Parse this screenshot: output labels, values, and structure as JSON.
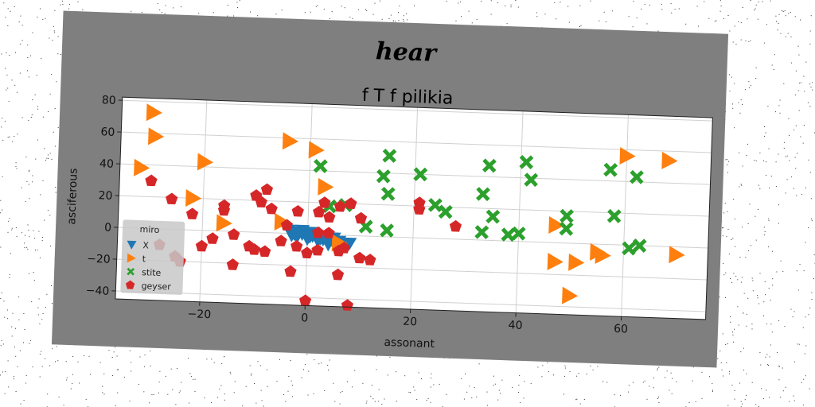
{
  "figure": {
    "suptitle": "hear"
  },
  "chart_data": {
    "type": "scatter",
    "title": "f T f pilikia",
    "xlabel": "assonant",
    "ylabel": "asciferous",
    "xlim": [
      -36,
      76
    ],
    "ylim": [
      -45,
      82
    ],
    "xticks": [
      -20,
      0,
      20,
      40,
      60
    ],
    "yticks": [
      -40,
      -20,
      0,
      20,
      40,
      60,
      80
    ],
    "grid": true,
    "legend": {
      "title": "miro",
      "position": "lower-left"
    },
    "series": [
      {
        "name": "X",
        "marker": "triangle-down",
        "color": "#1f77b4",
        "points": [
          [
            -3.5,
            2
          ],
          [
            -2,
            1
          ],
          [
            -1,
            0
          ],
          [
            0,
            0.5
          ],
          [
            1,
            -1
          ],
          [
            2,
            -2
          ],
          [
            3,
            -3
          ],
          [
            4,
            -4
          ],
          [
            5,
            -5
          ],
          [
            -3,
            -1
          ],
          [
            -2,
            -2
          ],
          [
            0,
            -3
          ],
          [
            2,
            -4
          ],
          [
            4,
            -6
          ],
          [
            6,
            -7
          ],
          [
            7,
            -6
          ],
          [
            -1,
            2
          ],
          [
            1,
            1
          ],
          [
            3,
            -1
          ],
          [
            5,
            -2
          ],
          [
            6,
            -4
          ],
          [
            8,
            -5
          ],
          [
            -2.5,
            0
          ],
          [
            0.5,
            -1.5
          ],
          [
            2.5,
            -2.5
          ]
        ]
      },
      {
        "name": "t",
        "marker": "triangle-right",
        "color": "#ff7f0e",
        "points": [
          [
            -30,
            73
          ],
          [
            -29.5,
            58
          ],
          [
            -32,
            38
          ],
          [
            -20,
            43
          ],
          [
            -22,
            20
          ],
          [
            -16,
            5
          ],
          [
            -4,
            58
          ],
          [
            1,
            53
          ],
          [
            3,
            30
          ],
          [
            -5,
            7
          ],
          [
            6,
            -5
          ],
          [
            47,
            11
          ],
          [
            47,
            -12
          ],
          [
            51,
            -12
          ],
          [
            55,
            -5
          ],
          [
            56,
            -7
          ],
          [
            50,
            -33
          ],
          [
            60,
            56
          ],
          [
            68,
            54
          ],
          [
            70,
            -5
          ]
        ]
      },
      {
        "name": "stite",
        "marker": "x",
        "color": "#2ca02c",
        "points": [
          [
            15,
            51
          ],
          [
            2,
            43
          ],
          [
            14,
            38
          ],
          [
            15,
            27
          ],
          [
            21,
            40
          ],
          [
            34,
            47
          ],
          [
            33,
            29
          ],
          [
            41,
            50
          ],
          [
            42,
            39
          ],
          [
            57,
            47
          ],
          [
            62,
            43
          ],
          [
            4,
            18
          ],
          [
            7,
            19
          ],
          [
            11,
            6
          ],
          [
            15,
            4
          ],
          [
            24,
            21
          ],
          [
            26,
            17
          ],
          [
            33,
            5
          ],
          [
            35,
            15
          ],
          [
            38,
            4
          ],
          [
            40,
            5
          ],
          [
            49,
            17
          ],
          [
            49,
            9
          ],
          [
            58,
            18
          ],
          [
            61,
            -2
          ],
          [
            63,
            0
          ]
        ]
      },
      {
        "name": "geyser",
        "marker": "pentagon",
        "color": "#d62728",
        "points": [
          [
            -30,
            30
          ],
          [
            -26,
            19
          ],
          [
            -22,
            10
          ],
          [
            -16,
            16
          ],
          [
            -16,
            13
          ],
          [
            -10,
            23
          ],
          [
            -9,
            19
          ],
          [
            -8,
            27
          ],
          [
            -7,
            15
          ],
          [
            -2,
            14
          ],
          [
            2,
            14
          ],
          [
            3,
            20
          ],
          [
            4,
            11
          ],
          [
            6,
            18
          ],
          [
            8,
            20
          ],
          [
            10,
            11
          ],
          [
            2,
            1
          ],
          [
            -4,
            5
          ],
          [
            4,
            1
          ],
          [
            -14,
            -2
          ],
          [
            -11,
            -9
          ],
          [
            -10,
            -11
          ],
          [
            -8,
            -12
          ],
          [
            -5,
            -5
          ],
          [
            -2,
            -8
          ],
          [
            0,
            -12
          ],
          [
            2,
            -10
          ],
          [
            6,
            -10
          ],
          [
            7,
            -8
          ],
          [
            10,
            -14
          ],
          [
            12,
            -15
          ],
          [
            -24,
            -20
          ],
          [
            -20,
            -10
          ],
          [
            -25,
            -17
          ],
          [
            -14,
            -21
          ],
          [
            -3,
            -24
          ],
          [
            6,
            -25
          ],
          [
            0,
            -42
          ],
          [
            8,
            -44
          ],
          [
            21,
            22
          ],
          [
            21,
            18
          ],
          [
            28,
            8
          ],
          [
            -28,
            -10
          ],
          [
            -18,
            -5
          ]
        ]
      }
    ]
  }
}
